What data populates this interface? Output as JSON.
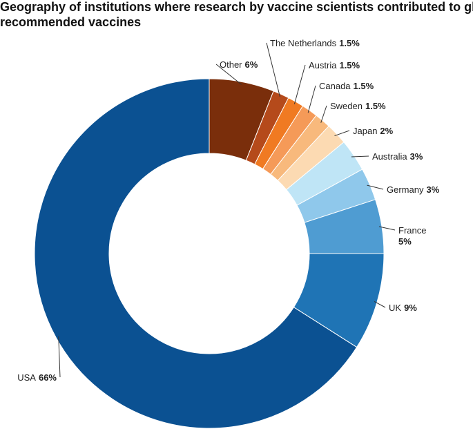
{
  "chart_data": {
    "type": "donut",
    "title": "Geography of institutions where research by vaccine scientists contributed to globally recommended vaccines",
    "categories": [
      "Other",
      "The Netherlands",
      "Austria",
      "Canada",
      "Sweden",
      "Japan",
      "Australia",
      "Germany",
      "France",
      "UK",
      "USA"
    ],
    "values": [
      6,
      1.5,
      1.5,
      1.5,
      1.5,
      2,
      3,
      3,
      5,
      9,
      66
    ],
    "value_labels": [
      "6%",
      "1.5%",
      "1.5%",
      "1.5%",
      "1.5%",
      "2%",
      "3%",
      "3%",
      "5%",
      "9%",
      "66%"
    ],
    "colors": [
      "#7a2e0b",
      "#b54a1b",
      "#f07a22",
      "#f59a58",
      "#f8b97c",
      "#fcdab2",
      "#bfe5f6",
      "#8fc8eb",
      "#4f9cd2",
      "#1f74b5",
      "#0b5192"
    ]
  }
}
